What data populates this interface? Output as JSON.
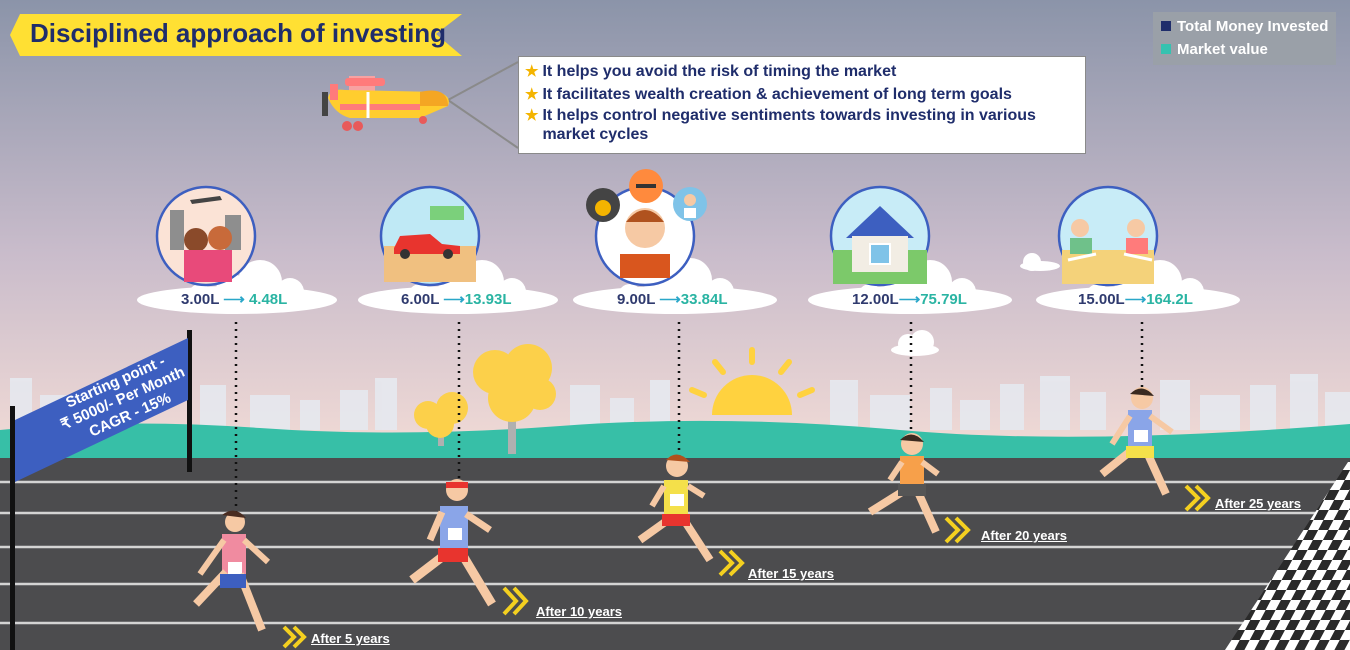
{
  "title": "Disciplined approach of investing",
  "legend": {
    "items": [
      {
        "label": "Total Money Invested",
        "color": "#1f2d6b"
      },
      {
        "label": "Market value",
        "color": "#36c2b0"
      }
    ]
  },
  "benefits": [
    "It helps you avoid the risk of timing the market",
    "It facilitates wealth creation & achievement of long term goals",
    "It helps control negative sentiments towards investing in various market cycles"
  ],
  "start_sign": {
    "line1": "Starting point -",
    "line2": "₹ 5000/- Per Month",
    "line3": "CAGR - 15%"
  },
  "milestones": [
    {
      "invested": "3.00L",
      "arrow": "⟶",
      "market": "4.48L",
      "after": "After 5 years",
      "icon": "travel-icon"
    },
    {
      "invested": "6.00L",
      "arrow": "⟶",
      "market": "13.93L",
      "after": "After 10 years",
      "icon": "car-icon"
    },
    {
      "invested": "9.00L",
      "arrow": "⟶",
      "market": "33.84L",
      "after": "After 15 years",
      "icon": "education-icon"
    },
    {
      "invested": "12.00L",
      "arrow": "⟶",
      "market": "75.79L",
      "after": "After 20 years",
      "icon": "house-icon"
    },
    {
      "invested": "15.00L",
      "arrow": "⟶",
      "market": "164.2L",
      "after": "After 25 years",
      "icon": "retirement-icon"
    }
  ],
  "colors": {
    "sky_top": "#8a93a8",
    "sky_bottom": "#f0d7d4",
    "ground": "#37bfa7",
    "track": "#4c4c4e",
    "banner": "#ffe033",
    "sign": "#3d5fc0"
  }
}
